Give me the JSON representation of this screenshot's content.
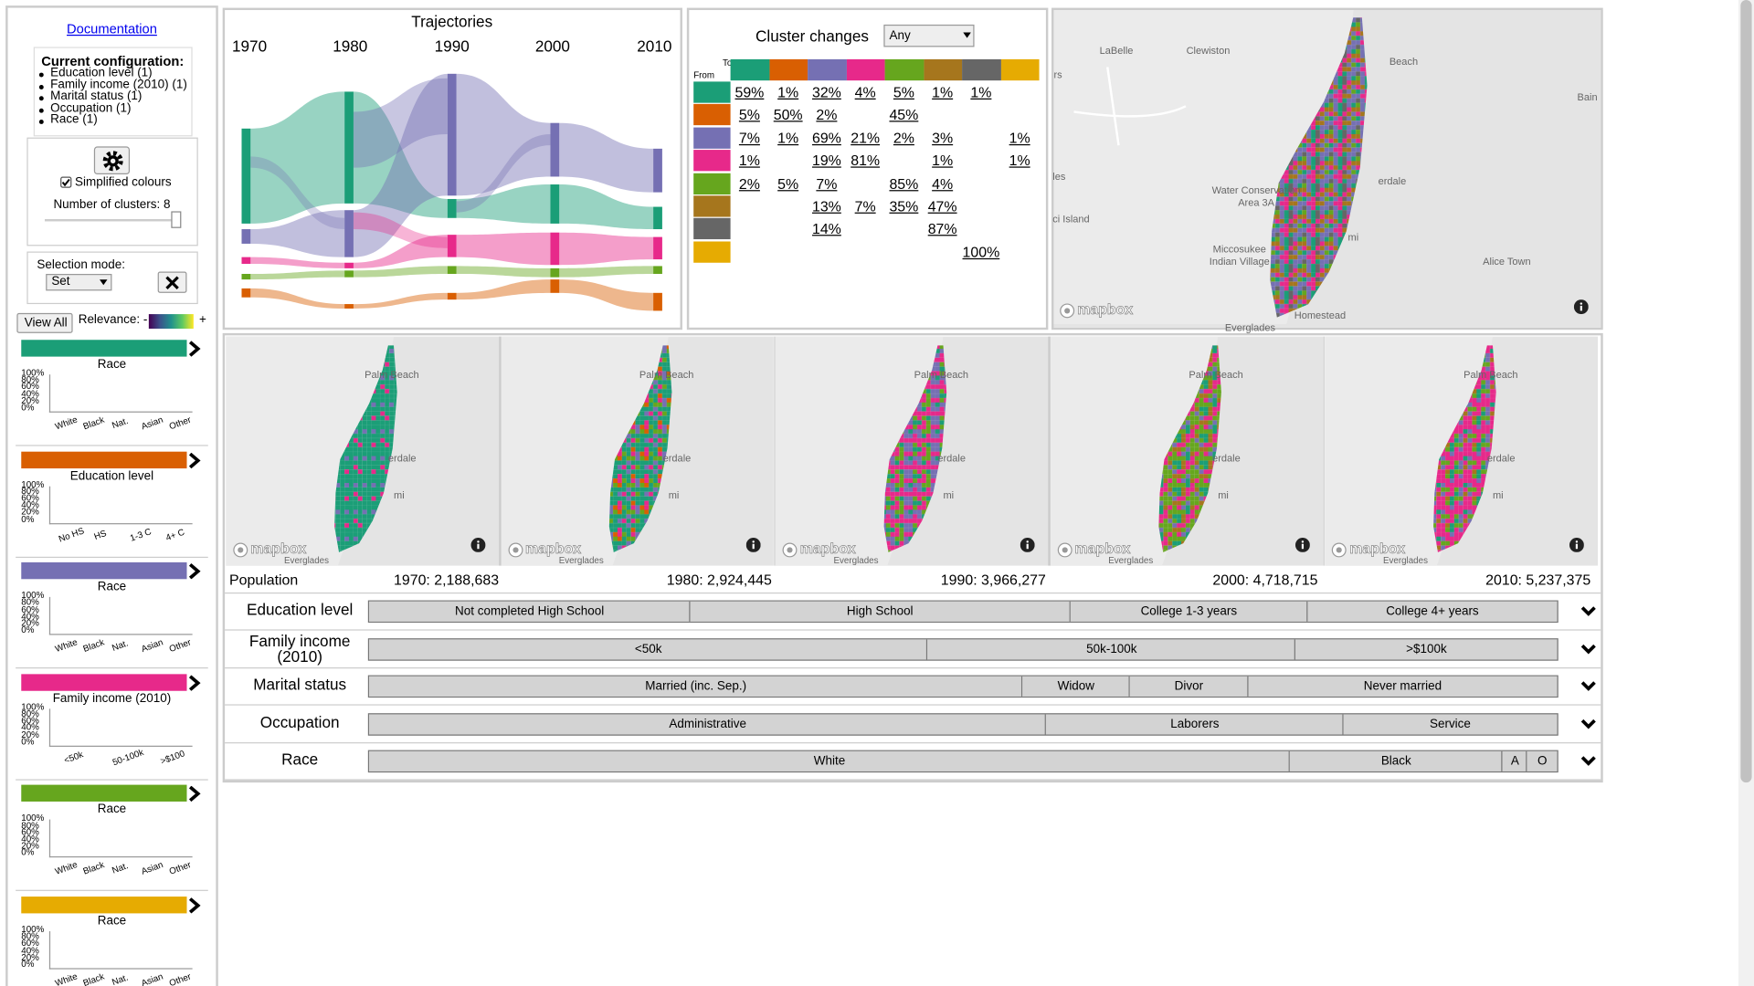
{
  "sidebar": {
    "documentation": "Documentation",
    "configuration": {
      "title": "Current configuration:",
      "items": [
        "Education level (1)",
        "Family income (2010) (1)",
        "Marital status (1)",
        "Occupation (1)",
        "Race (1)"
      ]
    },
    "simplified_colours": "Simplified colours",
    "clusters_count": "Number of clusters: 8",
    "selection_mode": {
      "label": "Selection mode:",
      "value": "Set"
    },
    "view_all": "View All",
    "relevance": {
      "minus": "Relevance: -",
      "plus": "+"
    },
    "axis_labels": [
      "100%",
      "80%",
      "60%",
      "40%",
      "20%",
      "0%"
    ],
    "cluster_cards": [
      {
        "color": "#1b9e77",
        "title": "Race",
        "categories": [
          "White",
          "Black",
          "Nat.",
          "Asian",
          "Other"
        ]
      },
      {
        "color": "#d95f02",
        "title": "Education level",
        "categories": [
          "No HS",
          "HS",
          "1-3 C",
          "4+ C"
        ]
      },
      {
        "color": "#7570b3",
        "title": "Race",
        "categories": [
          "White",
          "Black",
          "Nat.",
          "Asian",
          "Other"
        ]
      },
      {
        "color": "#e7298a",
        "title": "Family income (2010)",
        "categories": [
          "<50k",
          "50-100k",
          ">$100"
        ]
      },
      {
        "color": "#66a61e",
        "title": "Race",
        "categories": [
          "White",
          "Black",
          "Nat.",
          "Asian",
          "Other"
        ]
      },
      {
        "color": "#e6ab02",
        "title": "Race",
        "categories": [
          "White",
          "Black",
          "Nat.",
          "Asian",
          "Other"
        ]
      }
    ]
  },
  "trajectories": {
    "title": "Trajectories",
    "years": [
      "1970",
      "1980",
      "1990",
      "2000",
      "2010"
    ]
  },
  "cluster_changes": {
    "title": "Cluster changes",
    "filter": "Any",
    "to_label": "To",
    "from_label": "From",
    "colors": [
      "#1b9e77",
      "#d95f02",
      "#7570b3",
      "#e7298a",
      "#66a61e",
      "#a6761d",
      "#666666",
      "#e6ab02"
    ],
    "rows": [
      [
        "59%",
        "1%",
        "32%",
        "4%",
        "5%",
        "1%",
        "1%",
        null
      ],
      [
        "5%",
        "50%",
        "2%",
        null,
        "45%",
        null,
        null,
        null
      ],
      [
        "7%",
        "1%",
        "69%",
        "21%",
        "2%",
        "3%",
        null,
        "1%"
      ],
      [
        "1%",
        null,
        "19%",
        "81%",
        null,
        "1%",
        null,
        "1%"
      ],
      [
        "2%",
        "5%",
        "7%",
        null,
        "85%",
        "4%",
        null,
        null
      ],
      [
        null,
        null,
        "13%",
        "7%",
        "35%",
        "47%",
        null,
        null
      ],
      [
        null,
        null,
        "14%",
        null,
        null,
        "87%",
        null,
        null
      ],
      [
        null,
        null,
        null,
        null,
        null,
        null,
        "100%",
        null
      ]
    ]
  },
  "main_map": {
    "labels": [
      "LaBelle",
      "Clewiston",
      "Beach",
      "rs",
      "Bain",
      "les",
      "Water Conservation",
      "Area 3A",
      "erdale",
      "ci Island",
      "Miccosukee",
      "Indian Village",
      "Alice Town",
      "mi",
      "Homestead",
      "Everglades"
    ],
    "attribution": "mapbox"
  },
  "period_maps": {
    "labels": [
      "Palm Beach",
      "erdale",
      "mi",
      "Everglades"
    ],
    "attribution": "mapbox"
  },
  "population": {
    "label": "Population",
    "years": [
      "1970: 2,188,683",
      "1980: 2,924,445",
      "1990: 3,966,277",
      "2000: 4,718,715",
      "2010: 5,237,375"
    ]
  },
  "attributes": [
    {
      "name": "Education level",
      "segments": [
        {
          "label": "Not completed High School",
          "value": 27
        },
        {
          "label": "High School",
          "value": 32
        },
        {
          "label": "College 1-3 years",
          "value": 20
        },
        {
          "label": "College 4+ years",
          "value": 21
        }
      ]
    },
    {
      "name": "Family income (2010)",
      "segments": [
        {
          "label": "<50k",
          "value": 47
        },
        {
          "label": "50k-100k",
          "value": 31
        },
        {
          "label": ">$100k",
          "value": 22
        }
      ]
    },
    {
      "name": "Marital status",
      "segments": [
        {
          "label": "Married (inc. Sep.)",
          "value": 55
        },
        {
          "label": "Widow",
          "value": 9
        },
        {
          "label": "Divor",
          "value": 10
        },
        {
          "label": "Never married",
          "value": 26
        }
      ]
    },
    {
      "name": "Occupation",
      "segments": [
        {
          "label": "Administrative",
          "value": 57
        },
        {
          "label": "Laborers",
          "value": 25
        },
        {
          "label": "Service",
          "value": 18
        }
      ]
    },
    {
      "name": "Race",
      "segments": [
        {
          "label": "White",
          "value": 77.5
        },
        {
          "label": "Black",
          "value": 17.9
        },
        {
          "label": "A",
          "value": 2.1
        },
        {
          "label": "O",
          "value": 2.5
        }
      ]
    }
  ]
}
